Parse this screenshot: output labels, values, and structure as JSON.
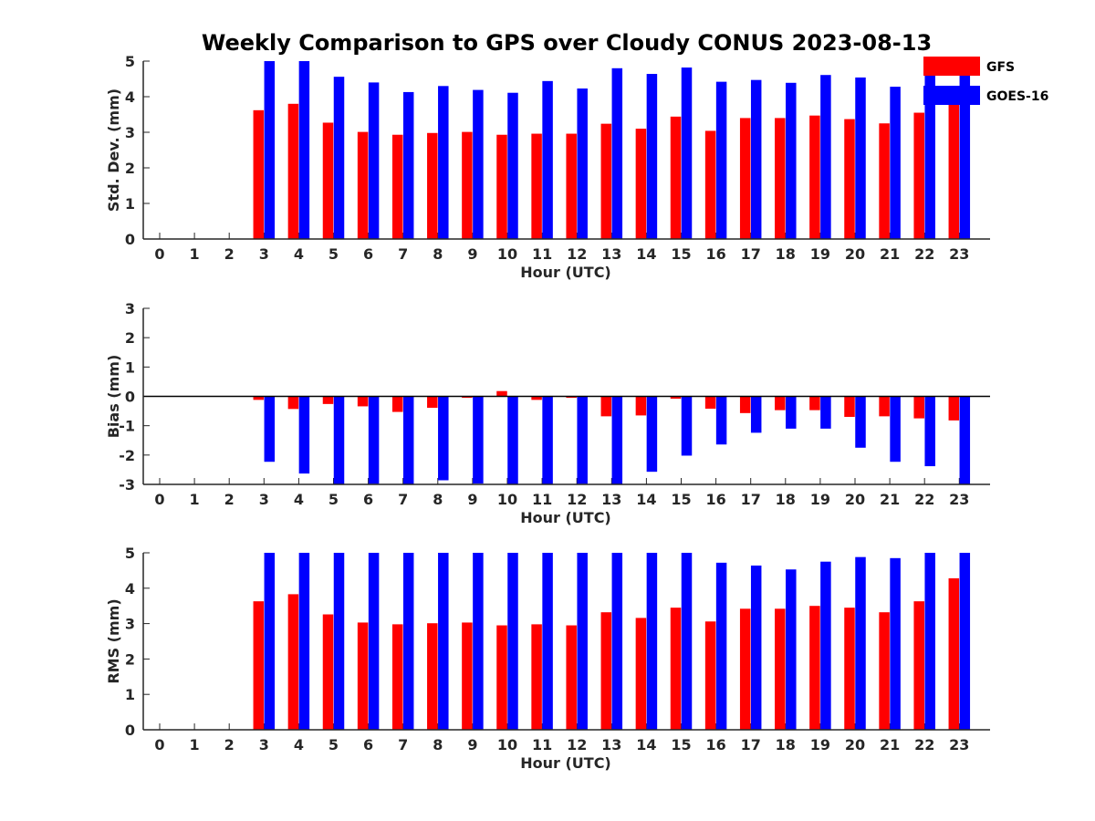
{
  "title": "Weekly Comparison to GPS over Cloudy CONUS 2023-08-13",
  "colors": {
    "GFS": "#ff0000",
    "GOES-16": "#0000ff"
  },
  "legend": [
    "GFS",
    "GOES-16"
  ],
  "chart_data": [
    {
      "type": "bar",
      "ylabel": "Std. Dev. (mm)",
      "xlabel": "Hour (UTC)",
      "categories": [
        "0",
        "1",
        "2",
        "3",
        "4",
        "5",
        "6",
        "7",
        "8",
        "9",
        "10",
        "11",
        "12",
        "13",
        "14",
        "15",
        "16",
        "17",
        "18",
        "19",
        "20",
        "21",
        "22",
        "23"
      ],
      "ylim": [
        0,
        5
      ],
      "yticks": [
        0,
        1,
        2,
        3,
        4,
        5
      ],
      "series": [
        {
          "name": "GFS",
          "values": [
            null,
            null,
            null,
            3.62,
            3.8,
            3.27,
            3.01,
            2.93,
            2.98,
            3.01,
            2.93,
            2.96,
            2.96,
            3.24,
            3.1,
            3.44,
            3.04,
            3.4,
            3.4,
            3.47,
            3.37,
            3.25,
            3.55,
            3.9
          ]
        },
        {
          "name": "GOES-16",
          "values": [
            null,
            null,
            null,
            5.0,
            5.0,
            4.56,
            4.4,
            4.13,
            4.3,
            4.19,
            4.11,
            4.44,
            4.23,
            4.8,
            4.64,
            4.82,
            4.42,
            4.47,
            4.39,
            4.61,
            4.54,
            4.28,
            4.75,
            4.75
          ]
        }
      ]
    },
    {
      "type": "bar",
      "ylabel": "Bias (mm)",
      "xlabel": "Hour (UTC)",
      "categories": [
        "0",
        "1",
        "2",
        "3",
        "4",
        "5",
        "6",
        "7",
        "8",
        "9",
        "10",
        "11",
        "12",
        "13",
        "14",
        "15",
        "16",
        "17",
        "18",
        "19",
        "20",
        "21",
        "22",
        "23"
      ],
      "ylim": [
        -3,
        3
      ],
      "yticks": [
        -3,
        -2,
        -1,
        0,
        1,
        2,
        3
      ],
      "zero_line": true,
      "series": [
        {
          "name": "GFS",
          "values": [
            null,
            null,
            null,
            -0.12,
            -0.43,
            -0.26,
            -0.34,
            -0.53,
            -0.39,
            -0.05,
            0.18,
            -0.12,
            -0.05,
            -0.68,
            -0.65,
            -0.08,
            -0.42,
            -0.57,
            -0.47,
            -0.47,
            -0.7,
            -0.68,
            -0.75,
            -0.82
          ]
        },
        {
          "name": "GOES-16",
          "values": [
            null,
            null,
            null,
            -2.23,
            -2.63,
            -3.0,
            -2.98,
            -3.0,
            -2.86,
            -2.97,
            -3.0,
            -3.0,
            -2.98,
            -3.0,
            -2.57,
            -2.02,
            -1.64,
            -1.24,
            -1.1,
            -1.1,
            -1.75,
            -2.23,
            -2.38,
            -3.0
          ]
        }
      ]
    },
    {
      "type": "bar",
      "ylabel": "RMS (mm)",
      "xlabel": "Hour (UTC)",
      "categories": [
        "0",
        "1",
        "2",
        "3",
        "4",
        "5",
        "6",
        "7",
        "8",
        "9",
        "10",
        "11",
        "12",
        "13",
        "14",
        "15",
        "16",
        "17",
        "18",
        "19",
        "20",
        "21",
        "22",
        "23"
      ],
      "ylim": [
        0,
        5
      ],
      "yticks": [
        0,
        1,
        2,
        3,
        4,
        5
      ],
      "series": [
        {
          "name": "GFS",
          "values": [
            null,
            null,
            null,
            3.63,
            3.83,
            3.26,
            3.03,
            2.98,
            3.01,
            3.03,
            2.95,
            2.98,
            2.95,
            3.32,
            3.16,
            3.45,
            3.06,
            3.42,
            3.42,
            3.5,
            3.45,
            3.32,
            3.63,
            4.28
          ]
        },
        {
          "name": "GOES-16",
          "values": [
            null,
            null,
            null,
            5.0,
            5.0,
            5.0,
            5.0,
            5.0,
            5.0,
            5.0,
            5.0,
            5.0,
            5.0,
            5.0,
            5.0,
            5.0,
            4.72,
            4.64,
            4.53,
            4.75,
            4.88,
            4.85,
            5.0,
            5.0
          ]
        }
      ]
    }
  ]
}
